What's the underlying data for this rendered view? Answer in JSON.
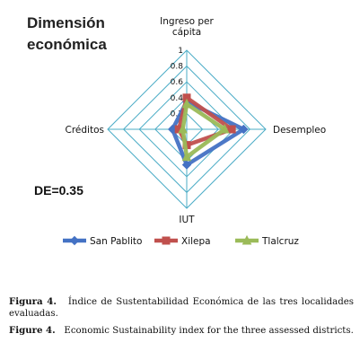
{
  "chart_data": {
    "type": "radar",
    "title_lines": [
      "Dimensión",
      "económica"
    ],
    "axes": [
      {
        "name": "Ingreso per cápita",
        "label_lines": [
          "Ingreso per",
          "cápita"
        ]
      },
      {
        "name": "Desempleo",
        "label_lines": [
          "Desempleo"
        ]
      },
      {
        "name": "IUT",
        "label_lines": [
          "IUT"
        ]
      },
      {
        "name": "Créditos",
        "label_lines": [
          "Créditos"
        ]
      }
    ],
    "range": [
      0,
      1
    ],
    "ticks": [
      "0",
      "0.2",
      "0.4",
      "0.6",
      "0.8",
      "1"
    ],
    "series": [
      {
        "name": "San Pablito",
        "color": "#4472C4",
        "marker": "diamond",
        "values": [
          0.35,
          0.72,
          0.45,
          0.18
        ]
      },
      {
        "name": "Xilepa",
        "color": "#C0504D",
        "marker": "square",
        "values": [
          0.4,
          0.57,
          0.2,
          0.1
        ]
      },
      {
        "name": "Tlalcruz",
        "color": "#9BBB59",
        "marker": "triangle",
        "values": [
          0.32,
          0.48,
          0.35,
          0.05
        ]
      }
    ],
    "annotation": "DE=0.35",
    "legend_position": "bottom"
  },
  "caption": {
    "es_label": "Figura 4.",
    "es_text": "Índice de Sustentabilidad Económica de las tres localidades evaluadas.",
    "en_label": "Figure 4.",
    "en_text": "Economic Sustainability index for the three assessed districts."
  }
}
